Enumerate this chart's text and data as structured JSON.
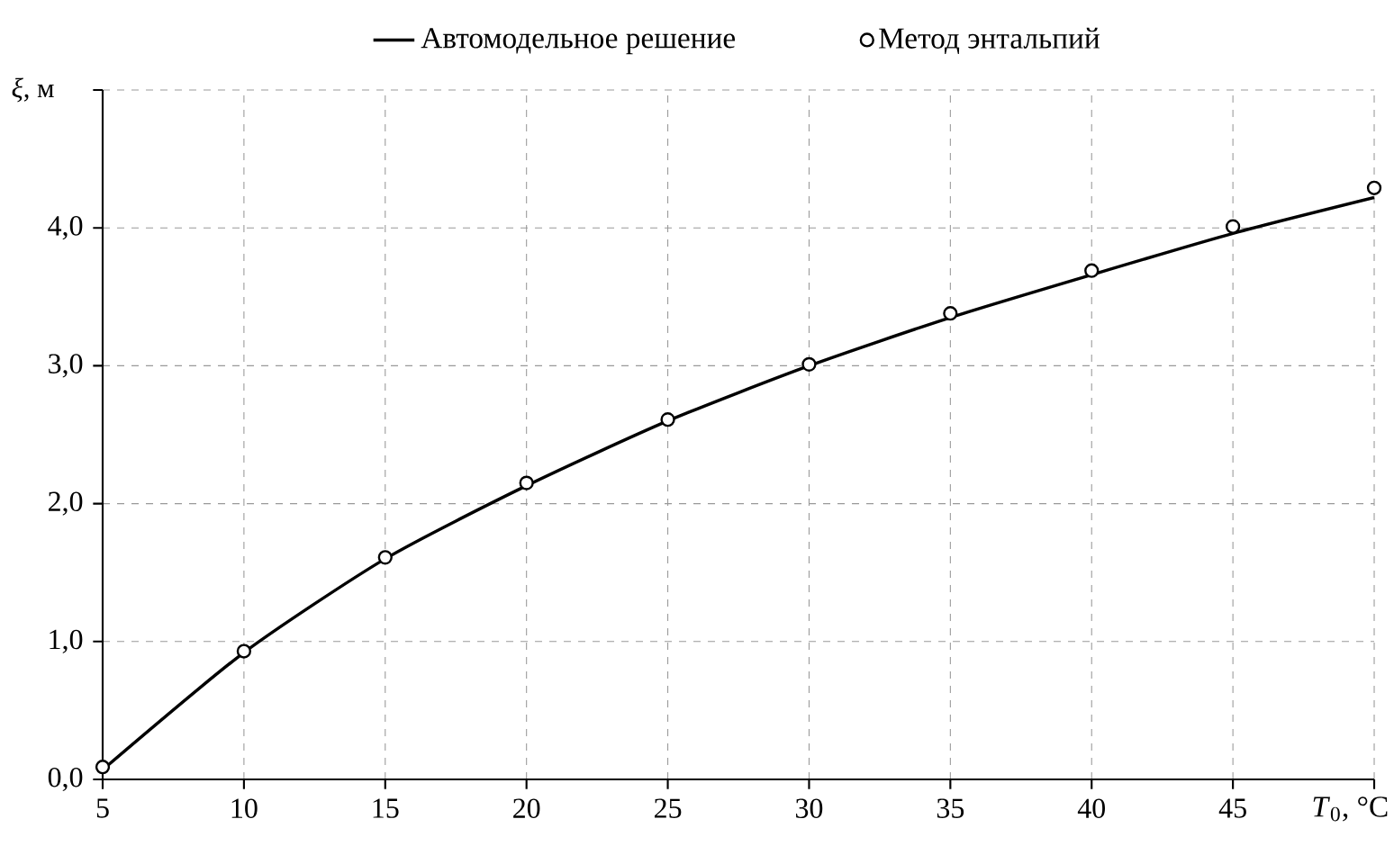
{
  "chart_data": {
    "type": "line",
    "xlabel": "*T*$_{0}$, °C",
    "ylabel": "*ξ*, м",
    "xlim": [
      5,
      50
    ],
    "ylim": [
      0,
      5
    ],
    "xticks": [
      5,
      10,
      15,
      20,
      25,
      30,
      35,
      40,
      45,
      {
        "value": 50,
        "label": null
      }
    ],
    "yticks": [
      {
        "value": 0,
        "label": "0,0"
      },
      {
        "value": 1,
        "label": "1,0"
      },
      {
        "value": 2,
        "label": "2,0"
      },
      {
        "value": 3,
        "label": "3,0"
      },
      {
        "value": 4,
        "label": "4,0"
      },
      {
        "value": 5,
        "label": null
      }
    ],
    "grid": true,
    "legend": "top",
    "series": [
      {
        "name": "Автомодельное решение",
        "color": "#000000",
        "marker": "none",
        "line_style": "solid",
        "x": [
          5,
          10,
          15,
          20,
          25,
          30,
          35,
          40,
          45,
          50
        ],
        "values": [
          0.07,
          0.92,
          1.6,
          2.13,
          2.6,
          3.0,
          3.35,
          3.66,
          3.96,
          4.22
        ]
      },
      {
        "name": "Метод энтальпий",
        "type": "scatter",
        "color": "#000000",
        "marker": "circle",
        "x": [
          5,
          10,
          15,
          20,
          25,
          30,
          35,
          40,
          45,
          50
        ],
        "values": [
          0.09,
          0.93,
          1.61,
          2.15,
          2.61,
          3.01,
          3.38,
          3.69,
          4.01,
          4.29
        ]
      }
    ]
  }
}
